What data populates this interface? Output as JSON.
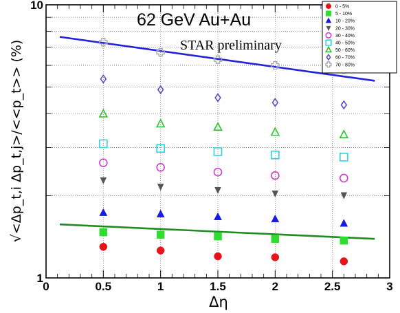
{
  "chart_data": {
    "type": "scatter",
    "title": "62 GeV Au+Au",
    "subtitle": "STAR preliminary",
    "xlabel": "Δη",
    "ylabel": "√<Δp_t,i Δp_t,j>/<<p_t>> (%)",
    "xlim": [
      0,
      3
    ],
    "ylim": [
      1,
      10
    ],
    "yscale": "log",
    "grid": true,
    "legend_position": "top-right",
    "x_ticks": [
      "0",
      "0.5",
      "1",
      "1.5",
      "2",
      "2.5",
      "3"
    ],
    "y_ticks": [
      "1",
      "10"
    ],
    "series": [
      {
        "name": "0 - 5%",
        "marker": "circle",
        "filled": true,
        "color": "#e8141b",
        "x": [
          0.5,
          1.0,
          1.5,
          2.0,
          2.6
        ],
        "y": [
          1.3,
          1.26,
          1.2,
          1.19,
          1.15
        ]
      },
      {
        "name": "5 - 10%",
        "marker": "square",
        "filled": true,
        "color": "#2ede2e",
        "x": [
          0.5,
          1.0,
          1.5,
          2.0,
          2.6
        ],
        "y": [
          1.47,
          1.44,
          1.42,
          1.39,
          1.37
        ]
      },
      {
        "name": "10 - 20%",
        "marker": "triangle",
        "filled": true,
        "color": "#1a1ae8",
        "x": [
          0.5,
          1.0,
          1.5,
          2.0,
          2.6
        ],
        "y": [
          1.73,
          1.71,
          1.67,
          1.64,
          1.58
        ]
      },
      {
        "name": "20 - 30%",
        "marker": "triangle-down",
        "filled": true,
        "color": "#555555",
        "x": [
          0.5,
          1.0,
          1.5,
          2.0,
          2.6
        ],
        "y": [
          2.28,
          2.16,
          2.1,
          2.04,
          2.01
        ]
      },
      {
        "name": "30 - 40%",
        "marker": "circle",
        "filled": false,
        "color": "#d43cd4",
        "x": [
          0.5,
          1.0,
          1.5,
          2.0,
          2.6
        ],
        "y": [
          2.64,
          2.54,
          2.44,
          2.37,
          2.32
        ]
      },
      {
        "name": "40 - 50%",
        "marker": "square",
        "filled": false,
        "color": "#2ad4e8",
        "x": [
          0.5,
          1.0,
          1.5,
          2.0,
          2.6
        ],
        "y": [
          3.1,
          2.98,
          2.9,
          2.82,
          2.77
        ]
      },
      {
        "name": "50 - 60%",
        "marker": "triangle",
        "filled": false,
        "color": "#2ec42e",
        "x": [
          0.5,
          1.0,
          1.5,
          2.0,
          2.6
        ],
        "y": [
          3.98,
          3.66,
          3.56,
          3.41,
          3.34
        ]
      },
      {
        "name": "60 - 70%",
        "marker": "diamond",
        "filled": false,
        "color": "#5a50c8",
        "x": [
          0.5,
          1.0,
          1.5,
          2.0,
          2.6
        ],
        "y": [
          5.35,
          4.89,
          4.57,
          4.39,
          4.3
        ]
      },
      {
        "name": "70 - 80%",
        "marker": "cross",
        "filled": false,
        "color": "#a8a8a8",
        "x": [
          0.5,
          1.0,
          1.5,
          2.0,
          2.6
        ],
        "y": [
          7.3,
          6.7,
          6.3,
          6.0,
          5.8
        ]
      }
    ],
    "fit_lines": [
      {
        "color": "#2222dd",
        "x": [
          0.12,
          2.87
        ],
        "y": [
          7.63,
          5.27
        ]
      },
      {
        "color": "#1e8c1e",
        "x": [
          0.12,
          2.87
        ],
        "y": [
          1.57,
          1.39
        ]
      }
    ]
  }
}
